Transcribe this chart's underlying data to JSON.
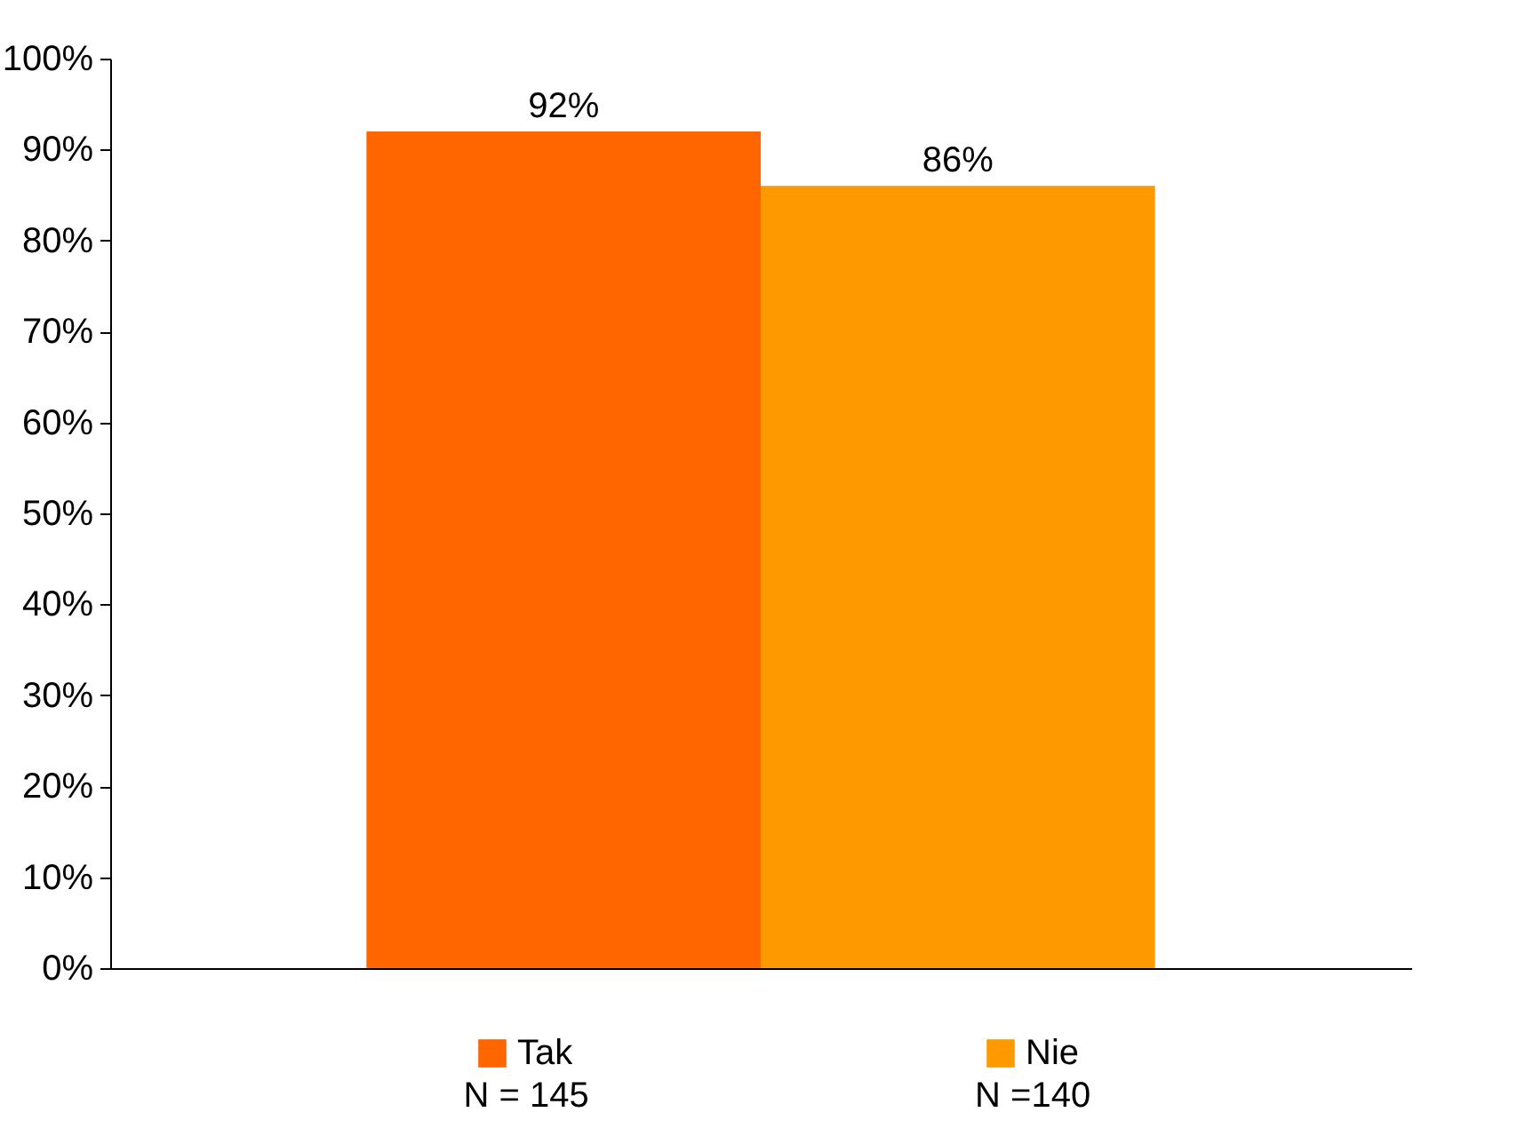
{
  "chart_data": {
    "type": "bar",
    "categories": [
      null
    ],
    "series": [
      {
        "name": "Tak",
        "color": "#ff6600",
        "values": [
          92
        ],
        "value_labels": [
          "92%"
        ]
      },
      {
        "name": "Nie",
        "color": "#ff9900",
        "values": [
          86
        ],
        "value_labels": [
          "86%"
        ]
      }
    ],
    "ylim": [
      0,
      100
    ],
    "yticks": [
      {
        "value": 0,
        "label": "0%"
      },
      {
        "value": 10,
        "label": "10%"
      },
      {
        "value": 20,
        "label": "20%"
      },
      {
        "value": 30,
        "label": "30%"
      },
      {
        "value": 40,
        "label": "40%"
      },
      {
        "value": 50,
        "label": "50%"
      },
      {
        "value": 60,
        "label": "60%"
      },
      {
        "value": 70,
        "label": "70%"
      },
      {
        "value": 80,
        "label": "80%"
      },
      {
        "value": 90,
        "label": "90%"
      },
      {
        "value": 100,
        "label": "100%"
      }
    ],
    "grid": false,
    "legend": "bottom",
    "annotations": [
      "N = 145",
      "N =140"
    ]
  }
}
